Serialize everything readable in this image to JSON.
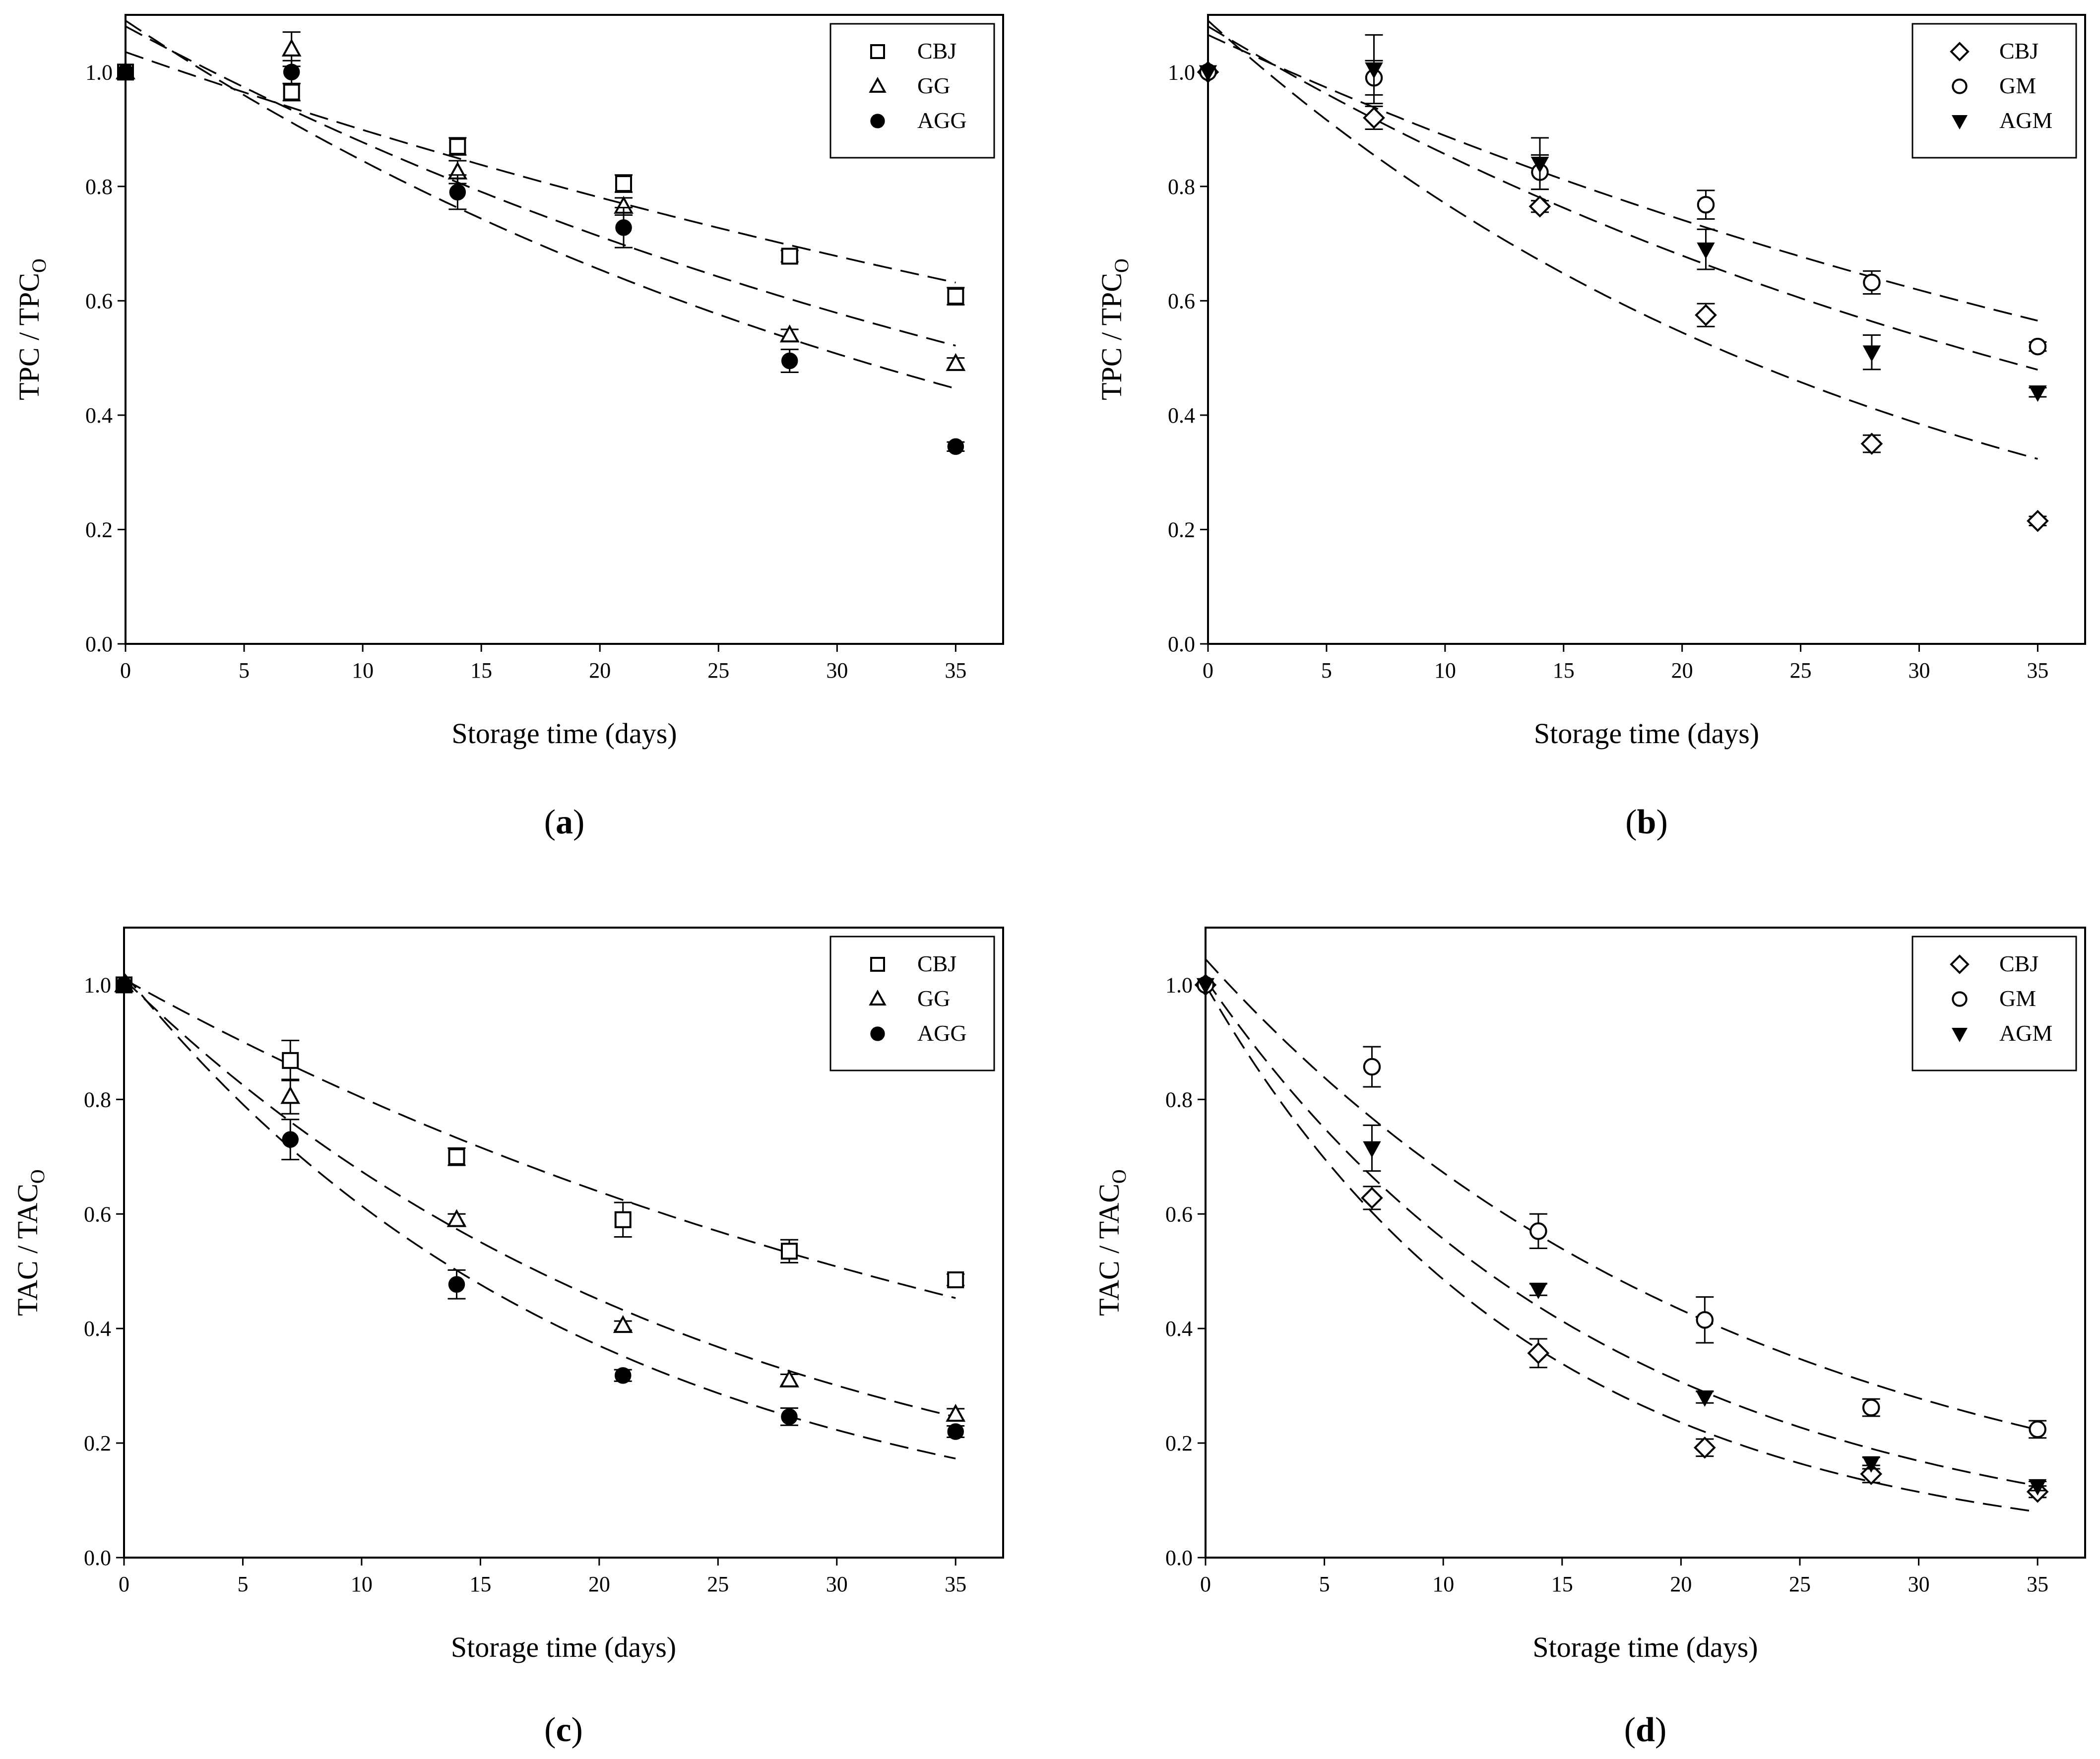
{
  "figure": {
    "panels": [
      "a",
      "b",
      "c",
      "d"
    ]
  },
  "chart_data": [
    {
      "id": "a",
      "type": "scatter",
      "panel_label_open": "(",
      "panel_label_letter": "a",
      "panel_label_close": ")",
      "xlabel": "Storage time (days)",
      "ylabel_main": "TPC / TPC",
      "ylabel_sub": "O",
      "xlim": [
        0,
        37
      ],
      "ylim": [
        0,
        1.1
      ],
      "xticks": [
        0,
        5,
        10,
        15,
        20,
        25,
        30,
        35
      ],
      "xtick_labels": [
        "0",
        "5",
        "10",
        "15",
        "20",
        "25",
        "30",
        "35"
      ],
      "yticks": [
        0,
        0.2,
        0.4,
        0.6,
        0.8,
        1.0
      ],
      "ytick_labels": [
        "0.0",
        "0.2",
        "0.4",
        "0.6",
        "0.8",
        "1.0"
      ],
      "legend_position": "top-right",
      "series": [
        {
          "name": "CBJ",
          "marker": "square-open",
          "x": [
            0,
            7,
            14,
            21,
            28,
            35
          ],
          "y": [
            1.0,
            0.965,
            0.87,
            0.805,
            0.678,
            0.608
          ],
          "err": [
            0,
            0.015,
            0.015,
            0.015,
            0.01,
            0.015
          ],
          "fit": {
            "a": 1.035,
            "k": 0.0141
          }
        },
        {
          "name": "GG",
          "marker": "triangle-open",
          "x": [
            0,
            7,
            14,
            21,
            28,
            35
          ],
          "y": [
            1.0,
            1.04,
            0.825,
            0.765,
            0.54,
            0.49
          ],
          "err": [
            0,
            0.03,
            0.02,
            0.015,
            0.01,
            0.01
          ],
          "fit": {
            "a": 1.08,
            "k": 0.0208
          }
        },
        {
          "name": "AGG",
          "marker": "circle-filled",
          "x": [
            0,
            7,
            14,
            21,
            28,
            35
          ],
          "y": [
            1.0,
            1.0,
            0.79,
            0.728,
            0.495,
            0.345
          ],
          "err": [
            0,
            0.02,
            0.03,
            0.035,
            0.02,
            0.008
          ],
          "fit": {
            "a": 1.09,
            "k": 0.0255
          }
        }
      ]
    },
    {
      "id": "b",
      "type": "scatter",
      "panel_label_open": "(",
      "panel_label_letter": "b",
      "panel_label_close": ")",
      "xlabel": "Storage time (days)",
      "ylabel_main": "TPC / TPC",
      "ylabel_sub": "O",
      "xlim": [
        0,
        37
      ],
      "ylim": [
        0,
        1.1
      ],
      "xticks": [
        0,
        5,
        10,
        15,
        20,
        25,
        30,
        35
      ],
      "xtick_labels": [
        "0",
        "5",
        "10",
        "15",
        "20",
        "25",
        "30",
        "35"
      ],
      "yticks": [
        0,
        0.2,
        0.4,
        0.6,
        0.8,
        1.0
      ],
      "ytick_labels": [
        "0.0",
        "0.2",
        "0.4",
        "0.6",
        "0.8",
        "1.0"
      ],
      "legend_position": "top-right",
      "series": [
        {
          "name": "CBJ",
          "marker": "diamond-open",
          "x": [
            0,
            7,
            14,
            21,
            28,
            35
          ],
          "y": [
            1.0,
            0.92,
            0.765,
            0.575,
            0.35,
            0.215
          ],
          "err": [
            0,
            0.02,
            0.01,
            0.02,
            0.015,
            0.008
          ],
          "fit": {
            "a": 1.09,
            "k": 0.0347
          }
        },
        {
          "name": "GM",
          "marker": "circle-open",
          "x": [
            0,
            7,
            14,
            21,
            28,
            35
          ],
          "y": [
            1.0,
            0.99,
            0.825,
            0.768,
            0.632,
            0.52
          ],
          "err": [
            0,
            0.03,
            0.03,
            0.025,
            0.02,
            0.008
          ],
          "fit": {
            "a": 1.065,
            "k": 0.0181
          }
        },
        {
          "name": "AGM",
          "marker": "triangle-down-filled",
          "x": [
            0,
            7,
            14,
            21,
            28,
            35
          ],
          "y": [
            1.0,
            1.005,
            0.84,
            0.69,
            0.51,
            0.44
          ],
          "err": [
            0,
            0.06,
            0.045,
            0.035,
            0.03,
            0.008
          ],
          "fit": {
            "a": 1.08,
            "k": 0.0232
          }
        }
      ]
    },
    {
      "id": "c",
      "type": "scatter",
      "panel_label_open": "(",
      "panel_label_letter": "c",
      "panel_label_close": ")",
      "xlabel": "Storage time (days)",
      "ylabel_main": "TAC / TAC",
      "ylabel_sub": "O",
      "xlim": [
        0,
        37
      ],
      "ylim": [
        0,
        1.1
      ],
      "xticks": [
        0,
        5,
        10,
        15,
        20,
        25,
        30,
        35
      ],
      "xtick_labels": [
        "0",
        "5",
        "10",
        "15",
        "20",
        "25",
        "30",
        "35"
      ],
      "yticks": [
        0,
        0.2,
        0.4,
        0.6,
        0.8,
        1.0
      ],
      "ytick_labels": [
        "0.0",
        "0.2",
        "0.4",
        "0.6",
        "0.8",
        "1.0"
      ],
      "legend_position": "top-right",
      "series": [
        {
          "name": "CBJ",
          "marker": "square-open",
          "x": [
            0,
            7,
            14,
            21,
            28,
            35
          ],
          "y": [
            1.0,
            0.868,
            0.7,
            0.59,
            0.535,
            0.485
          ],
          "err": [
            0,
            0.035,
            0.015,
            0.03,
            0.02,
            0.01
          ],
          "fit": {
            "a": 1.01,
            "k": 0.0229
          }
        },
        {
          "name": "GG",
          "marker": "triangle-open",
          "x": [
            0,
            7,
            14,
            21,
            28,
            35
          ],
          "y": [
            1.0,
            0.805,
            0.59,
            0.405,
            0.31,
            0.25
          ],
          "err": [
            0,
            0.03,
            0.01,
            0.008,
            0.01,
            0.01
          ],
          "fit": {
            "a": 1.01,
            "k": 0.0404
          }
        },
        {
          "name": "AGG",
          "marker": "circle-filled",
          "x": [
            0,
            7,
            14,
            21,
            28,
            35
          ],
          "y": [
            1.0,
            0.73,
            0.477,
            0.318,
            0.246,
            0.22
          ],
          "err": [
            0,
            0.035,
            0.025,
            0.01,
            0.015,
            0.01
          ],
          "fit": {
            "a": 1.02,
            "k": 0.0507
          }
        }
      ]
    },
    {
      "id": "d",
      "type": "scatter",
      "panel_label_open": "(",
      "panel_label_letter": "d",
      "panel_label_close": ")",
      "xlabel": "Storage time (days)",
      "ylabel_main": "TAC / TAC",
      "ylabel_sub": "O",
      "xlim": [
        0,
        37
      ],
      "ylim": [
        0,
        1.1
      ],
      "xticks": [
        0,
        5,
        10,
        15,
        20,
        25,
        30,
        35
      ],
      "xtick_labels": [
        "0",
        "5",
        "10",
        "15",
        "20",
        "25",
        "30",
        "35"
      ],
      "yticks": [
        0,
        0.2,
        0.4,
        0.6,
        0.8,
        1.0
      ],
      "ytick_labels": [
        "0.0",
        "0.2",
        "0.4",
        "0.6",
        "0.8",
        "1.0"
      ],
      "legend_position": "top-right",
      "series": [
        {
          "name": "CBJ",
          "marker": "diamond-open",
          "x": [
            0,
            7,
            14,
            21,
            28,
            35
          ],
          "y": [
            1.0,
            0.628,
            0.357,
            0.192,
            0.146,
            0.115
          ],
          "err": [
            0,
            0.02,
            0.025,
            0.015,
            0.015,
            0.01
          ],
          "fit": {
            "a": 1.0,
            "k": 0.0722
          }
        },
        {
          "name": "GM",
          "marker": "circle-open",
          "x": [
            0,
            7,
            14,
            21,
            28,
            35
          ],
          "y": [
            1.0,
            0.857,
            0.57,
            0.415,
            0.262,
            0.224
          ],
          "err": [
            0,
            0.035,
            0.03,
            0.04,
            0.015,
            0.015
          ],
          "fit": {
            "a": 1.045,
            "k": 0.0441
          }
        },
        {
          "name": "AGM",
          "marker": "triangle-down-filled",
          "x": [
            0,
            7,
            14,
            21,
            28,
            35
          ],
          "y": [
            1.0,
            0.715,
            0.468,
            0.28,
            0.165,
            0.125
          ],
          "err": [
            0,
            0.04,
            0.01,
            0.01,
            0.01,
            0.008
          ],
          "fit": {
            "a": 1.01,
            "k": 0.0596
          }
        }
      ]
    }
  ]
}
